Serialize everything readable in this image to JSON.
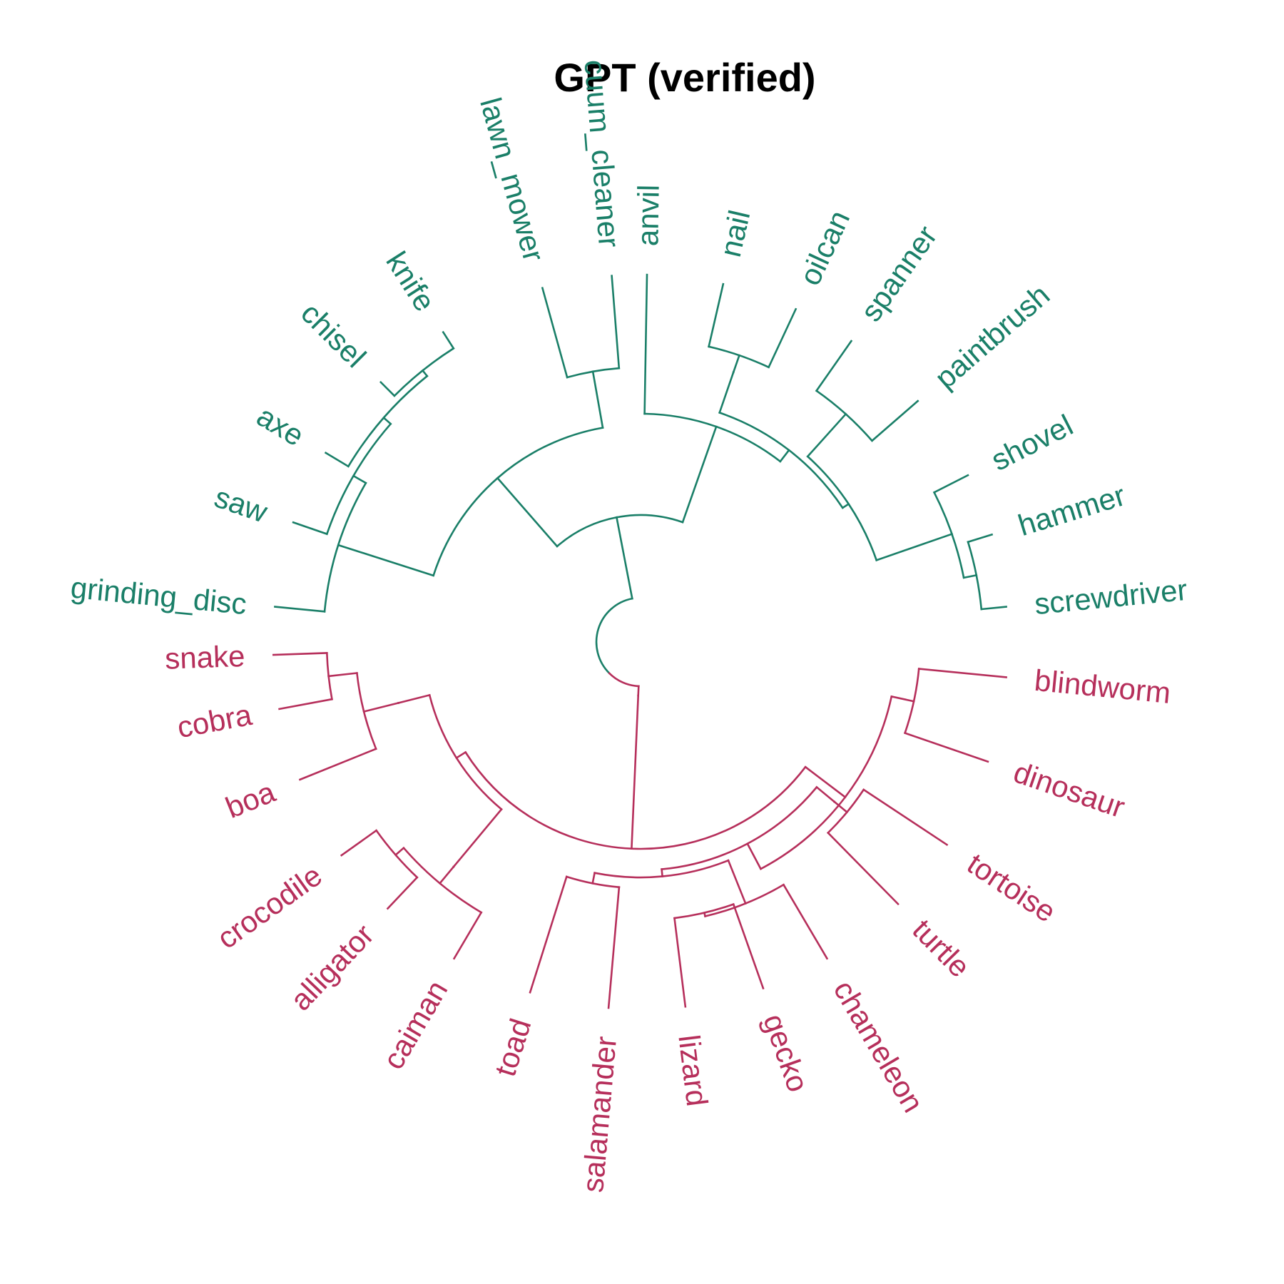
{
  "title": "GPT (verified)",
  "colors": {
    "tools": "#1a7f68",
    "reptiles": "#b62f5b"
  },
  "clusters": [
    {
      "id": "tools",
      "color_key": "tools",
      "leaves": [
        "grinding_disc",
        "saw",
        "axe",
        "chisel",
        "knife",
        "lawn_mower",
        "cuum_cleaner",
        "anvil",
        "nail",
        "oilcan",
        "spanner",
        "paintbrush",
        "shovel",
        "hammer",
        "screwdriver"
      ]
    },
    {
      "id": "reptiles",
      "color_key": "reptiles",
      "leaves": [
        "blindworm",
        "dinosaur",
        "tortoise",
        "turtle",
        "chameleon",
        "gecko",
        "lizard",
        "salamander",
        "toad",
        "caiman",
        "alligator",
        "crocodile",
        "boa",
        "cobra",
        "snake"
      ]
    }
  ],
  "labels": {
    "grinding_disc": "grinding_disc",
    "saw": "saw",
    "axe": "axe",
    "chisel": "chisel",
    "knife": "knife",
    "lawn_mower": "lawn_mower",
    "cuum_cleaner": "cuum_cleaner",
    "anvil": "anvil",
    "nail": "nail",
    "oilcan": "oilcan",
    "spanner": "spanner",
    "paintbrush": "paintbrush",
    "shovel": "shovel",
    "hammer": "hammer",
    "screwdriver": "screwdriver",
    "blindworm": "blindworm",
    "dinosaur": "dinosaur",
    "tortoise": "tortoise",
    "turtle": "turtle",
    "chameleon": "chameleon",
    "gecko": "gecko",
    "lizard": "lizard",
    "salamander": "salamander",
    "toad": "toad",
    "caiman": "caiman",
    "alligator": "alligator",
    "crocodile": "crocodile",
    "boa": "boa",
    "cobra": "cobra",
    "snake": "snake"
  }
}
